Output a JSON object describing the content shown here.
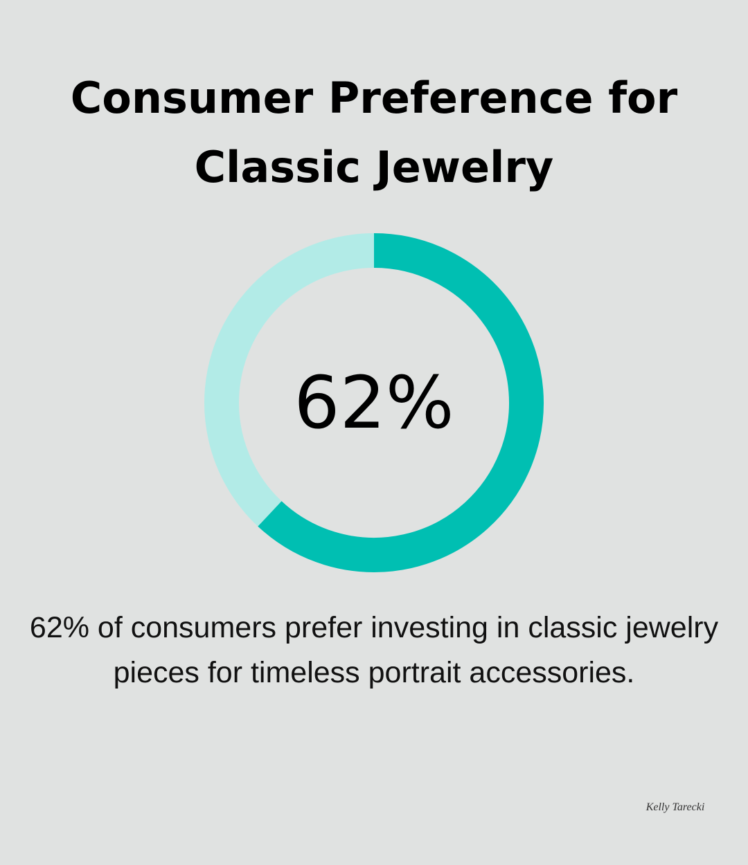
{
  "chart_data": {
    "type": "donut",
    "title": "Consumer Preference for Classic Jewelry",
    "values": [
      62,
      38
    ],
    "value_labels": [
      "62%",
      null
    ],
    "colors": [
      "#00bfb2",
      "#b2ebe7"
    ],
    "description": "62% of consumers prefer investing in classic jewelry pieces for timeless portrait accessories.",
    "logo": "Kelly Tarecki"
  }
}
